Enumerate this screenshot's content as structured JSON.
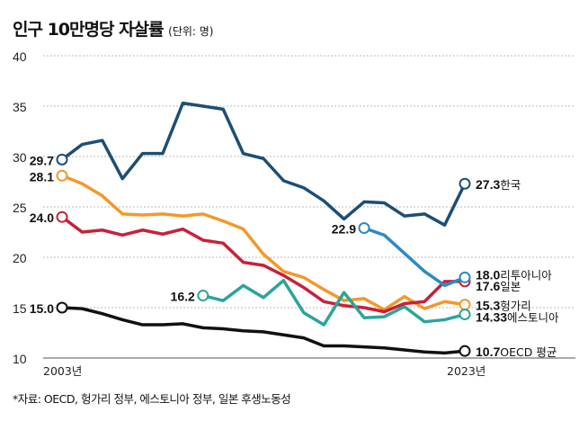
{
  "chart_data": {
    "type": "line",
    "title": "인구 10만명당 자살률",
    "unit": "(단위: 명)",
    "source": "*자료: OECD, 헝가리 정부, 에스토니아 정부, 일본 후생노동성",
    "x": [
      2003,
      2004,
      2005,
      2006,
      2007,
      2008,
      2009,
      2010,
      2011,
      2012,
      2013,
      2014,
      2015,
      2016,
      2017,
      2018,
      2019,
      2020,
      2021,
      2022,
      2023
    ],
    "x_tick_labels": [
      "2003년",
      "2023년"
    ],
    "ylim": [
      10,
      40
    ],
    "y_ticks": [
      10,
      15,
      20,
      25,
      30,
      35,
      40
    ],
    "grid": true,
    "series": [
      {
        "name": "한국",
        "color": "#1d4e74",
        "start_label": "29.7",
        "end_label": "27.3",
        "values": [
          29.7,
          31.2,
          31.6,
          27.8,
          30.3,
          30.3,
          35.3,
          35.0,
          34.7,
          30.3,
          29.8,
          27.6,
          26.9,
          25.6,
          23.8,
          25.5,
          25.4,
          24.1,
          24.3,
          23.2,
          27.3
        ]
      },
      {
        "name": "헝가리",
        "color": "#f4982a",
        "start_label": "28.1",
        "end_label": "15.3",
        "values": [
          28.1,
          27.3,
          26.1,
          24.3,
          24.2,
          24.3,
          24.1,
          24.3,
          23.6,
          22.8,
          20.3,
          18.6,
          18.0,
          16.8,
          15.7,
          15.9,
          14.8,
          16.1,
          14.9,
          15.6,
          15.3
        ]
      },
      {
        "name": "일본",
        "color": "#c8203a",
        "start_label": "24.0",
        "end_label": "17.6",
        "values": [
          24.0,
          22.5,
          22.7,
          22.2,
          22.7,
          22.3,
          22.8,
          21.7,
          21.4,
          19.5,
          19.2,
          18.2,
          17.0,
          15.6,
          15.2,
          15.0,
          14.6,
          15.4,
          15.6,
          17.6,
          17.6
        ]
      },
      {
        "name": "리투아니아",
        "color": "#2a8ac8",
        "start_label": "22.9",
        "end_label": "18.0",
        "values": [
          null,
          null,
          null,
          null,
          null,
          null,
          null,
          null,
          null,
          null,
          null,
          null,
          null,
          null,
          null,
          22.9,
          22.2,
          20.4,
          18.6,
          17.2,
          18.0
        ]
      },
      {
        "name": "에스토니아",
        "color": "#2aa59a",
        "start_label": "16.2",
        "end_label": "14.33",
        "values": [
          null,
          null,
          null,
          null,
          null,
          null,
          null,
          16.2,
          15.7,
          17.2,
          16.0,
          17.7,
          14.5,
          13.3,
          16.5,
          14.0,
          14.1,
          15.1,
          13.6,
          13.8,
          14.33
        ]
      },
      {
        "name": "OECD 평균",
        "color": "#111111",
        "start_label": "15.0",
        "end_label": "10.7",
        "values": [
          15.0,
          14.9,
          14.4,
          13.8,
          13.3,
          13.3,
          13.4,
          13.0,
          12.9,
          12.7,
          12.6,
          12.3,
          12.0,
          11.2,
          11.2,
          11.1,
          11.0,
          10.8,
          10.6,
          10.5,
          10.7
        ]
      }
    ]
  }
}
